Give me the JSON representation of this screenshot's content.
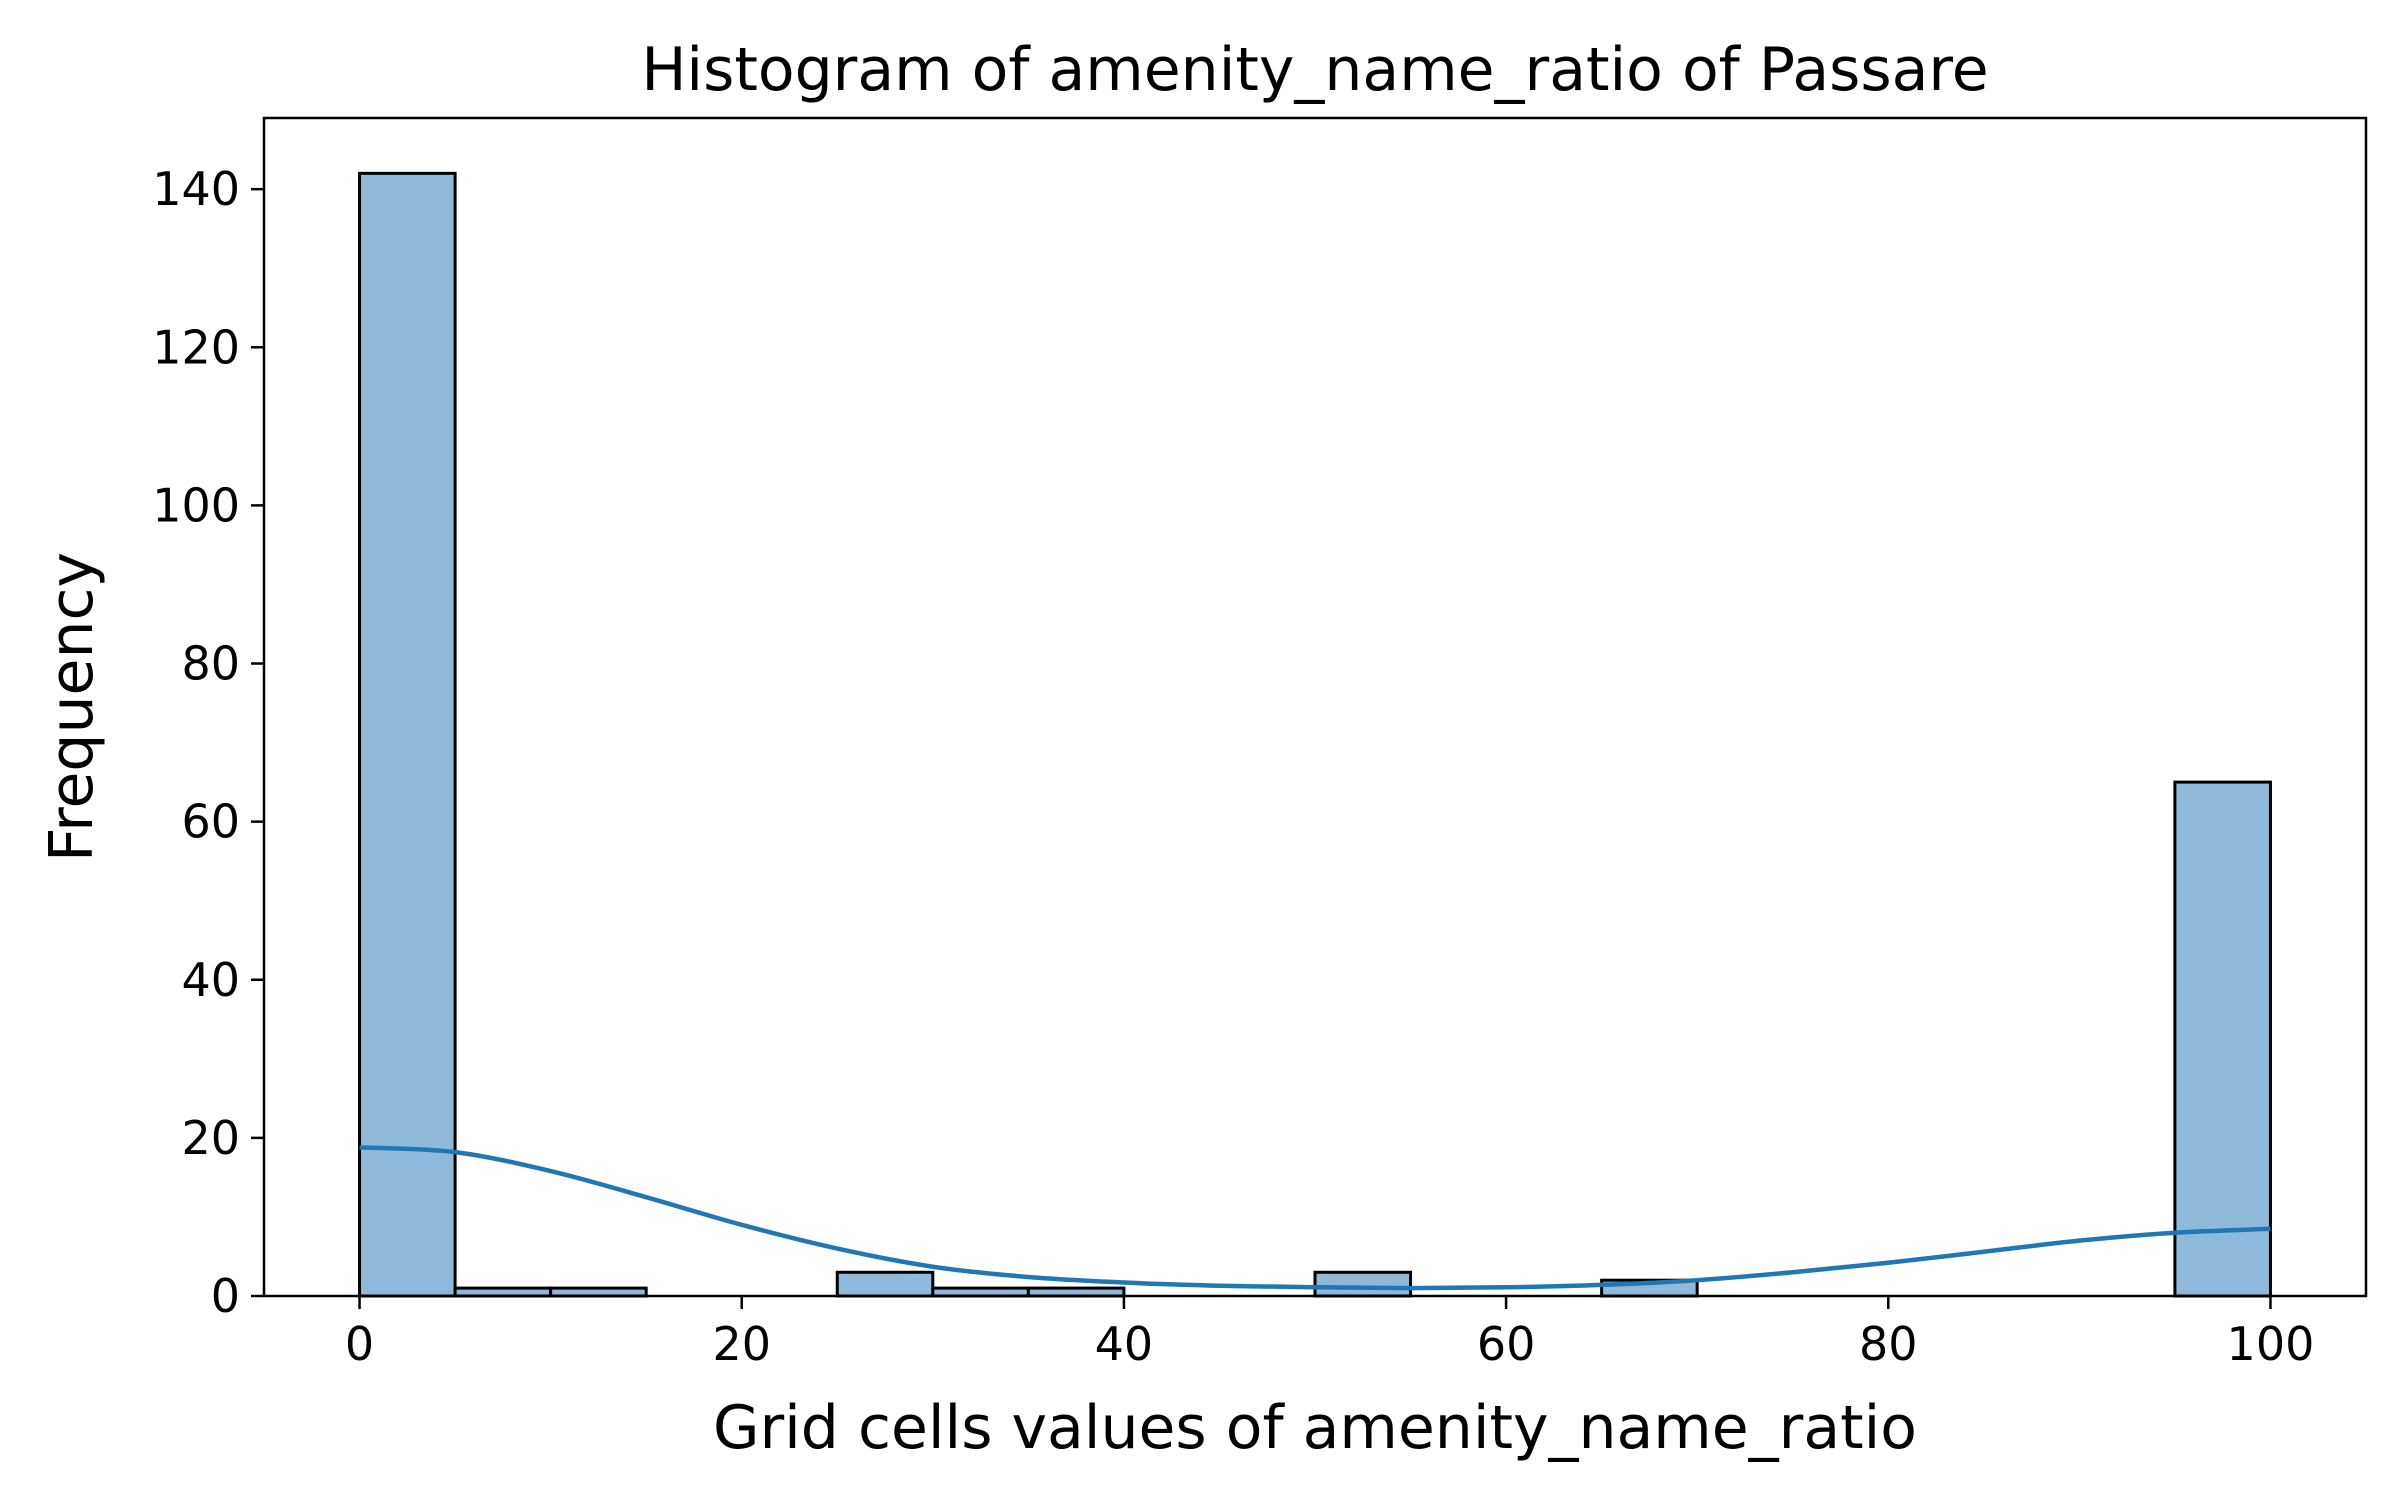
{
  "chart_data": {
    "type": "bar",
    "title": "Histogram of amenity_name_ratio of Passare",
    "xlabel": "Grid cells values of amenity_name_ratio",
    "ylabel": "Frequency",
    "xlim": [
      -5,
      105
    ],
    "ylim": [
      0,
      149
    ],
    "xticks": [
      0,
      20,
      40,
      60,
      80,
      100
    ],
    "yticks": [
      0,
      20,
      40,
      60,
      80,
      100,
      120,
      140
    ],
    "bin_edges": [
      0,
      5,
      10,
      15,
      20,
      25,
      30,
      35,
      40,
      45,
      50,
      55,
      60,
      65,
      70,
      75,
      80,
      85,
      90,
      95,
      100
    ],
    "values": [
      142,
      1,
      1,
      0,
      0,
      3,
      1,
      1,
      0,
      0,
      3,
      0,
      0,
      2,
      0,
      0,
      0,
      0,
      0,
      65
    ],
    "bar_fill": "#8fb9da",
    "bar_edge": "#000000",
    "kde": {
      "x": [
        0,
        5,
        10,
        15,
        20,
        25,
        30,
        35,
        40,
        45,
        50,
        55,
        60,
        65,
        70,
        75,
        80,
        85,
        90,
        95,
        100
      ],
      "y": [
        18.8,
        18.2,
        15.8,
        12.5,
        9.0,
        6.0,
        3.7,
        2.4,
        1.7,
        1.3,
        1.1,
        1.0,
        1.1,
        1.4,
        2.0,
        3.0,
        4.2,
        5.6,
        7.0,
        8.0,
        8.5
      ],
      "color": "#1f77b4"
    },
    "grid": false
  }
}
